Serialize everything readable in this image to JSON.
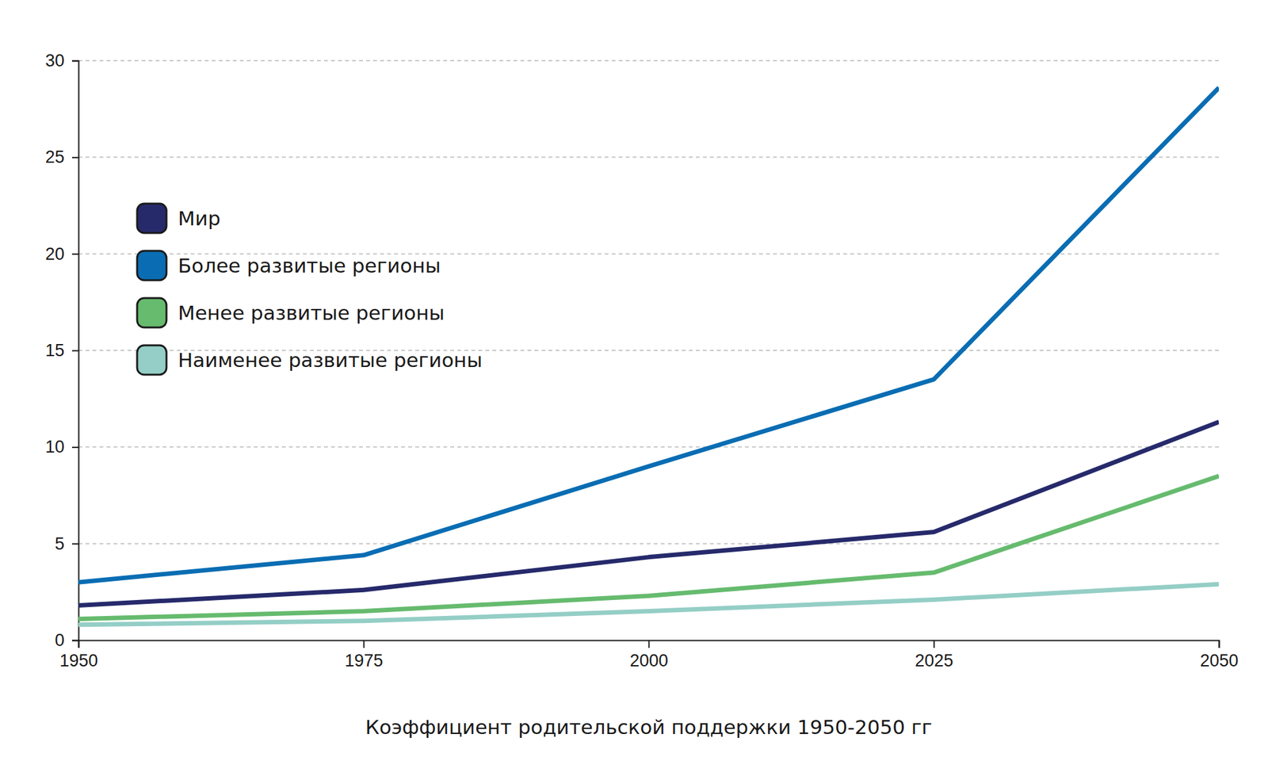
{
  "chart_data": {
    "type": "line",
    "title": "Коэффициент родительской поддержки 1950-2050 гг",
    "x": [
      1950,
      1975,
      2000,
      2025,
      2050
    ],
    "xlim": [
      1950,
      2050
    ],
    "xticks": [
      1950,
      1975,
      2000,
      2025,
      2050
    ],
    "ylim": [
      0,
      30
    ],
    "yticks": [
      0,
      5,
      10,
      15,
      20,
      25,
      30
    ],
    "grid": true,
    "legend": "left",
    "series": [
      {
        "name": "Мир",
        "color": "#262a6b",
        "values": [
          1.8,
          2.6,
          4.3,
          5.6,
          11.3
        ]
      },
      {
        "name": "Более развитые регионы",
        "color": "#0a6db3",
        "values": [
          3.0,
          4.4,
          9.0,
          13.5,
          28.6
        ]
      },
      {
        "name": "Менее развитые регионы",
        "color": "#66bb6e",
        "values": [
          1.1,
          1.5,
          2.3,
          3.5,
          8.5
        ]
      },
      {
        "name": "Наименее развитые регионы",
        "color": "#94cec6",
        "values": [
          0.8,
          1.0,
          1.5,
          2.1,
          2.9
        ]
      }
    ]
  }
}
